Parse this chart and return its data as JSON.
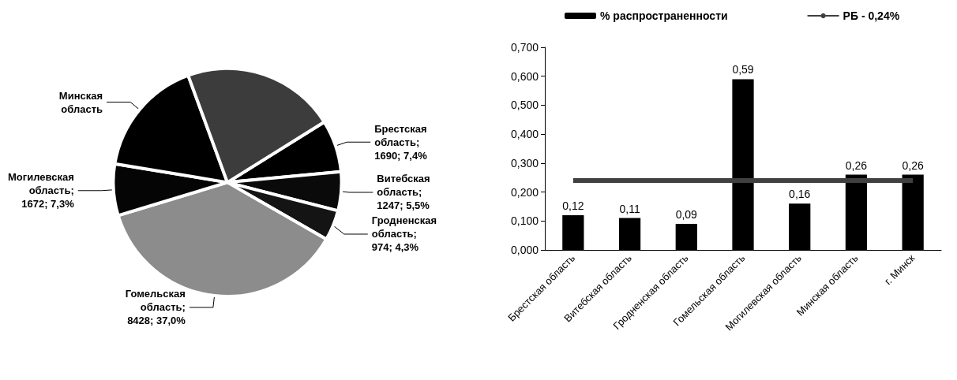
{
  "chart_data": [
    {
      "type": "pie",
      "categories": [
        "Брестская область",
        "Витебская область",
        "Гродненская область",
        "Гомельская область",
        "Могилевская область",
        "Минская область",
        null
      ],
      "values": [
        7.4,
        5.5,
        4.3,
        37.0,
        7.3,
        16.8,
        21.7
      ],
      "value_labels": [
        "; 1690; 7,4%",
        "; 1247; 5,5%",
        "; 974; 4,3%",
        "; 8428; 37,0%",
        "; 1672; 7,3%",
        null,
        null
      ],
      "colors": [
        "#000000",
        "#0a0a0a",
        "#141414",
        "#8c8c8c",
        "#050505",
        "#000000",
        "#3c3c3c"
      ]
    },
    {
      "type": "bar",
      "categories": [
        "Брестская область",
        "Витебская область",
        "Гродненская область",
        "Гомельская область",
        "Могилевская область",
        "Минская область",
        "г. Минск"
      ],
      "series": [
        {
          "name": "% распространенности",
          "color": "#000000",
          "values": [
            0.12,
            0.11,
            0.09,
            0.59,
            0.16,
            0.26,
            0.26
          ],
          "value_labels": [
            "0,12",
            "0,11",
            "0,09",
            "0,59",
            "0,16",
            "0,26",
            "0,26"
          ]
        },
        {
          "type": "line",
          "name": "РБ - 0,24%",
          "color": "#404040",
          "values": [
            0.24,
            0.24,
            0.24,
            0.24,
            0.24,
            0.24,
            0.24
          ]
        }
      ],
      "ylim": [
        0,
        0.7
      ],
      "yticks": [
        {
          "value": 0,
          "label": "0,000"
        },
        {
          "value": 0.1,
          "label": "0,100"
        },
        {
          "value": 0.2,
          "label": "0,200"
        },
        {
          "value": 0.3,
          "label": "0,300"
        },
        {
          "value": 0.4,
          "label": "0,400"
        },
        {
          "value": 0.5,
          "label": "0,500"
        },
        {
          "value": 0.6,
          "label": "0,600"
        },
        {
          "value": 0.7,
          "label": "0,700"
        }
      ],
      "grid": false,
      "legend": "top",
      "marker": "none"
    }
  ]
}
